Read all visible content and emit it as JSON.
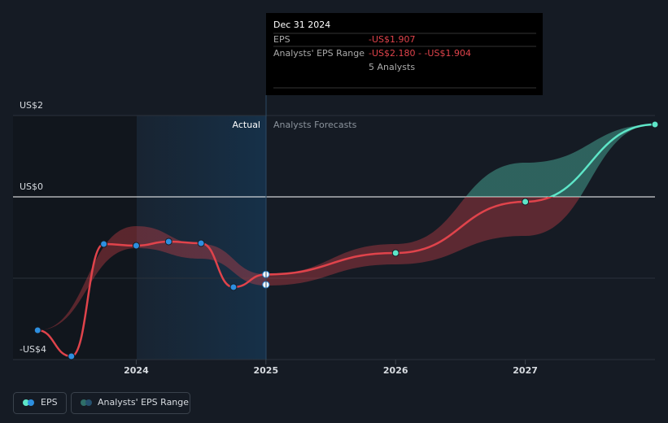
{
  "chart_data": {
    "type": "line",
    "labels": {
      "actual": "Actual",
      "forecast": "Analysts Forecasts"
    },
    "tooltip": {
      "date": "Dec 31 2024",
      "rows": [
        [
          "EPS",
          "-US$1.907"
        ],
        [
          "Analysts' EPS Range",
          "-US$2.180 - -US$1.904"
        ]
      ],
      "note": "5 Analysts"
    },
    "xlim": [
      2023.05,
      2028.0
    ],
    "xticks": [
      2024,
      2025,
      2026,
      2027
    ],
    "ylim": [
      -4,
      2
    ],
    "yticks": [
      {
        "value": 2,
        "label": "US$2"
      },
      {
        "value": 0,
        "label": "US$0"
      },
      {
        "value": -2,
        "label": null
      },
      {
        "value": -4,
        "label": "-US$4"
      }
    ],
    "series": [
      {
        "name": "EPS",
        "color": "#e0434b",
        "color_positive": "#5ee6c8",
        "marker_color": "#2d8fe0",
        "x": [
          2023.24,
          2023.5,
          2023.75,
          2024.0,
          2024.25,
          2024.5,
          2024.75,
          2025.0,
          2026.0,
          2027.0,
          2028.0
        ],
        "values": [
          -3.28,
          -3.92,
          -1.16,
          -1.2,
          -1.1,
          -1.14,
          -2.22,
          -1.907,
          -1.38,
          -0.12,
          1.78
        ]
      },
      {
        "name": "Analysts' EPS Range",
        "color": "#e0434b",
        "color_positive": "#5ee6c8",
        "x": [
          2023.24,
          2024.0,
          2024.5,
          2025.0,
          2026.0,
          2027.0,
          2028.0
        ],
        "low": [
          -3.28,
          -1.26,
          -1.52,
          -2.18,
          -1.66,
          -0.96,
          1.78
        ],
        "high": [
          -3.28,
          -0.72,
          -1.16,
          -1.904,
          -1.16,
          0.84,
          1.78
        ]
      }
    ],
    "reported": {
      "x": [
        2025.0
      ],
      "values": [
        -2.16
      ]
    },
    "zero_line": true
  }
}
